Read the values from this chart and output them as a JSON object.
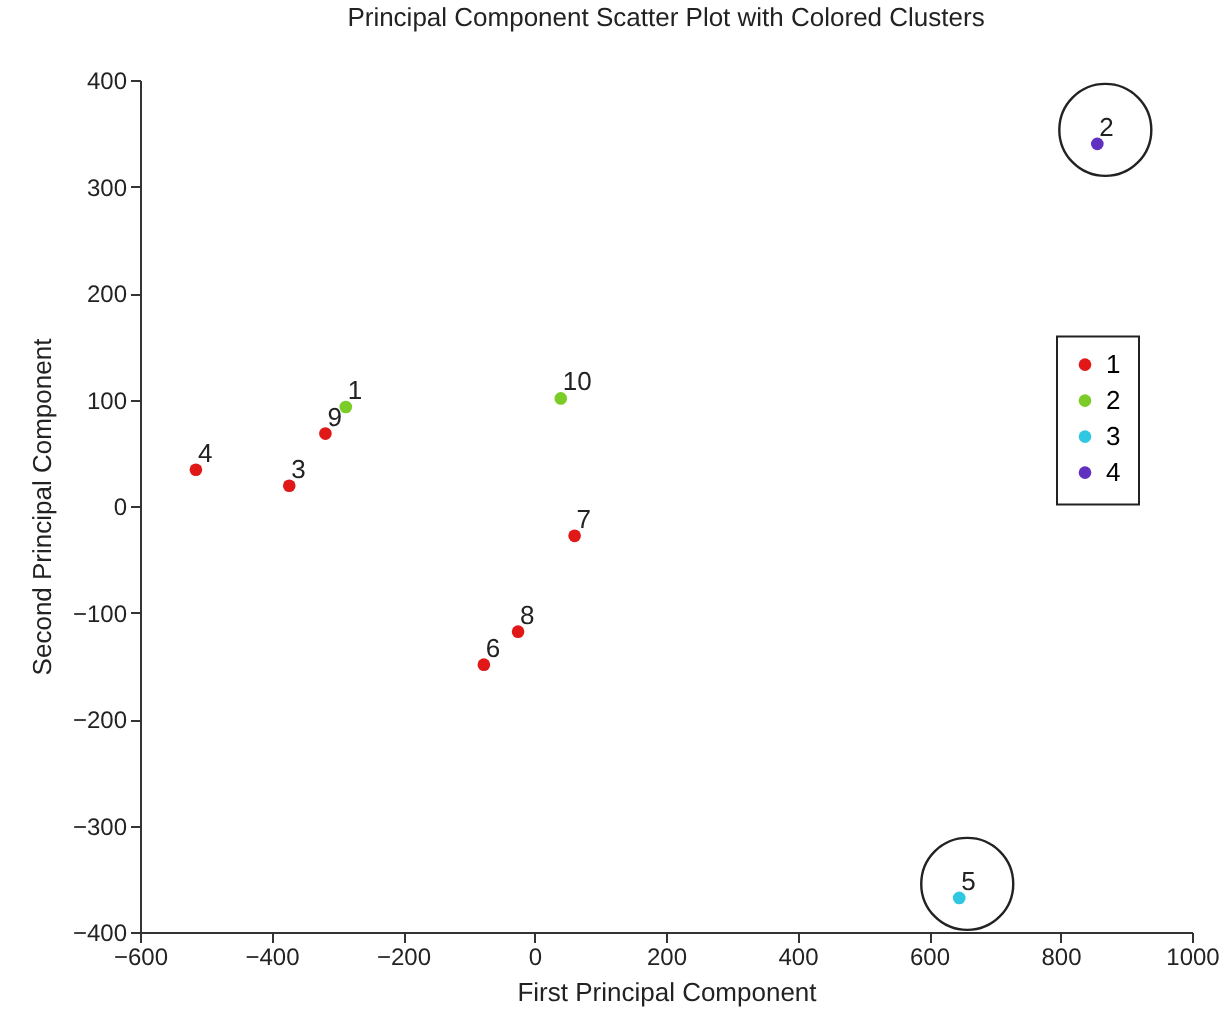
{
  "chart_data": {
    "type": "scatter",
    "title": "Principal Component Scatter Plot with Colored Clusters",
    "xlabel": "First Principal Component",
    "ylabel": "Second Principal Component",
    "series": [
      {
        "name": "1",
        "color": "#e01818",
        "x": [
          -515,
          -373,
          -318,
          61,
          -25,
          -77
        ],
        "values": [
          34,
          19,
          68,
          -28,
          -118,
          -149
        ]
      },
      {
        "name": "2",
        "color": "#7ccc28",
        "x": [
          -287,
          40
        ],
        "values": [
          93,
          101
        ]
      },
      {
        "name": "3",
        "color": "#30c8e0",
        "x": [
          646
        ],
        "values": [
          -368
        ]
      },
      {
        "name": "4",
        "color": "#6030c0",
        "x": [
          856
        ],
        "values": [
          340
        ]
      }
    ],
    "annotations": [
      {
        "text": "4",
        "x": -515,
        "y": 34
      },
      {
        "text": "3",
        "x": -373,
        "y": 19
      },
      {
        "text": "9",
        "x": -318,
        "y": 68
      },
      {
        "text": "7",
        "x": 61,
        "y": -28
      },
      {
        "text": "8",
        "x": -25,
        "y": -118
      },
      {
        "text": "6",
        "x": -77,
        "y": -149
      },
      {
        "text": "1",
        "x": -287,
        "y": 93
      },
      {
        "text": "10",
        "x": 40,
        "y": 101
      },
      {
        "text": "5",
        "x": 646,
        "y": -368
      },
      {
        "text": "2",
        "x": 856,
        "y": 340
      }
    ],
    "xlim": [
      -600,
      1000
    ],
    "xticks": [
      -600,
      -400,
      -200,
      0,
      200,
      400,
      600,
      800,
      1000
    ],
    "ylim": [
      -400,
      400
    ],
    "yticks": [
      -400,
      -300,
      -200,
      -100,
      0,
      100,
      200,
      300,
      400
    ],
    "legend": "right",
    "marker": "circle",
    "grid": false
  }
}
